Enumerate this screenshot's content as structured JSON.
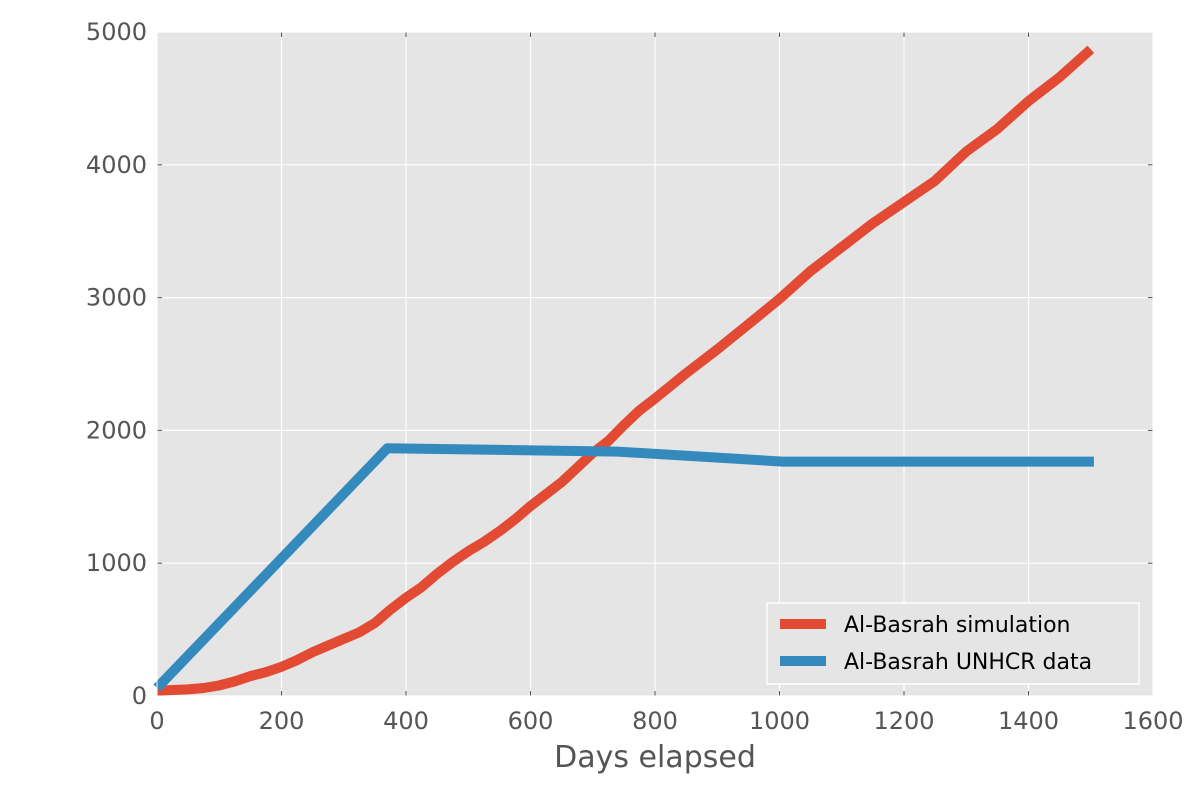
{
  "chart_data": {
    "type": "line",
    "title": "",
    "xlabel": "Days elapsed",
    "ylabel": "",
    "xlim": [
      0,
      1600
    ],
    "ylim": [
      0,
      5000
    ],
    "xticks": [
      "0",
      "200",
      "400",
      "600",
      "800",
      "1000",
      "1200",
      "1400",
      "1600"
    ],
    "yticks": [
      "0",
      "1000",
      "2000",
      "3000",
      "4000",
      "5000"
    ],
    "grid": true,
    "legend": "lower-right",
    "series": [
      {
        "name": "Al-Basrah simulation",
        "color": "#E24A33",
        "x": [
          0,
          25,
          50,
          75,
          100,
          125,
          150,
          175,
          200,
          225,
          250,
          275,
          300,
          325,
          350,
          375,
          400,
          425,
          450,
          475,
          500,
          525,
          550,
          575,
          600,
          625,
          650,
          675,
          700,
          725,
          750,
          775,
          800,
          850,
          900,
          950,
          1000,
          1050,
          1100,
          1150,
          1200,
          1250,
          1300,
          1350,
          1400,
          1450,
          1500
        ],
        "y": [
          40,
          45,
          50,
          60,
          80,
          110,
          150,
          180,
          220,
          270,
          330,
          380,
          430,
          480,
          550,
          650,
          740,
          820,
          920,
          1010,
          1090,
          1160,
          1240,
          1330,
          1430,
          1520,
          1610,
          1720,
          1830,
          1920,
          2040,
          2150,
          2240,
          2430,
          2610,
          2800,
          2990,
          3200,
          3380,
          3560,
          3720,
          3880,
          4100,
          4270,
          4480,
          4660,
          4870
        ]
      },
      {
        "name": "Al-Basrah UNHCR data",
        "color": "#348ABD",
        "x": [
          0,
          370,
          740,
          1005,
          1505
        ],
        "y": [
          60,
          1865,
          1840,
          1765,
          1765
        ]
      }
    ]
  }
}
